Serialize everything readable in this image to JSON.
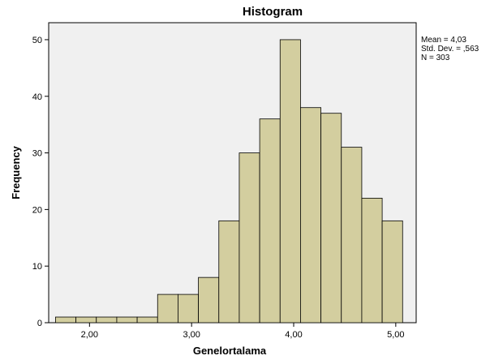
{
  "chart_data": {
    "type": "bar",
    "title": "Histogram",
    "xlabel": "Genelortalama",
    "ylabel": "Frequency",
    "xlim": [
      1.6,
      5.2
    ],
    "ylim": [
      0,
      53
    ],
    "bin_width": 0.2,
    "bins": [
      {
        "x": 1.667,
        "value": 1
      },
      {
        "x": 1.867,
        "value": 1
      },
      {
        "x": 2.067,
        "value": 1
      },
      {
        "x": 2.267,
        "value": 1
      },
      {
        "x": 2.467,
        "value": 1
      },
      {
        "x": 2.667,
        "value": 5
      },
      {
        "x": 2.867,
        "value": 5
      },
      {
        "x": 3.067,
        "value": 8
      },
      {
        "x": 3.267,
        "value": 18
      },
      {
        "x": 3.467,
        "value": 30
      },
      {
        "x": 3.667,
        "value": 36
      },
      {
        "x": 3.867,
        "value": 50
      },
      {
        "x": 4.067,
        "value": 38
      },
      {
        "x": 4.267,
        "value": 37
      },
      {
        "x": 4.467,
        "value": 31
      },
      {
        "x": 4.667,
        "value": 22
      },
      {
        "x": 4.867,
        "value": 18
      }
    ],
    "x_ticks": [
      {
        "value": 2,
        "label": "2,00"
      },
      {
        "value": 3,
        "label": "3,00"
      },
      {
        "value": 4,
        "label": "4,00"
      },
      {
        "value": 5,
        "label": "5,00"
      }
    ],
    "y_ticks": [
      {
        "value": 0,
        "label": "0"
      },
      {
        "value": 10,
        "label": "10"
      },
      {
        "value": 20,
        "label": "20"
      },
      {
        "value": 30,
        "label": "30"
      },
      {
        "value": 40,
        "label": "40"
      },
      {
        "value": 50,
        "label": "50"
      }
    ],
    "stats": {
      "mean": "Mean = 4,03",
      "std_dev": "Std. Dev. = ,563",
      "n": "N = 303"
    },
    "grid": false,
    "colors": {
      "plot_background": "#f0f0f0",
      "bar_fill": "#d3ce9f",
      "bar_stroke": "#000000",
      "frame": "#000000"
    }
  }
}
